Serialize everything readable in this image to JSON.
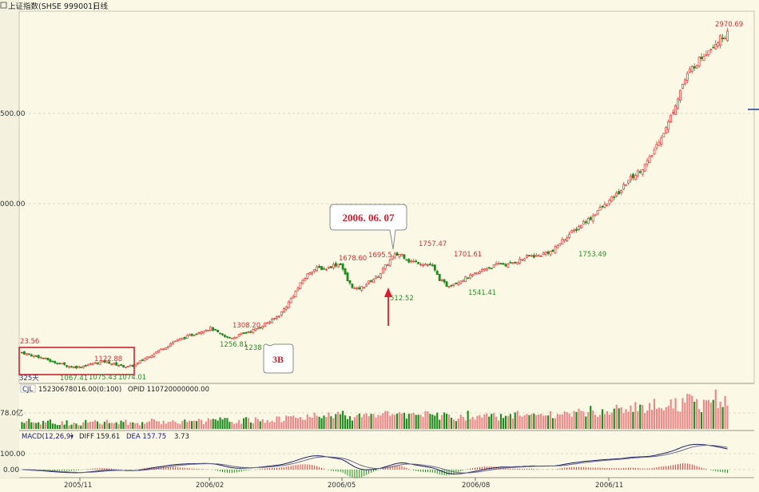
{
  "header": {
    "title": "上证指数(SHSE 999001)",
    "period": "日线"
  },
  "colors": {
    "background": "#fbf9e6",
    "up": "#e0383a",
    "down": "#1c8c1c",
    "grid": "#d8d6c6",
    "annotation_red": "#cc2030",
    "label_red": "#d03030",
    "label_green": "#2a8a2a",
    "macd_diff": "#1a1a66",
    "macd_dea": "#6a6a8a",
    "box": "#cc2233"
  },
  "price_axis": {
    "labels": [
      "500.00",
      "000.00"
    ]
  },
  "x_axis": {
    "labels": [
      "2005/11",
      "2006/02",
      "2006/05",
      "2006/08",
      "2006/11"
    ]
  },
  "price_annotations": [
    {
      "text": "23.56",
      "color": "red"
    },
    {
      "text": "1122.88",
      "color": "red"
    },
    {
      "text": "1067.41",
      "color": "green"
    },
    {
      "text": "1075.43",
      "color": "green"
    },
    {
      "text": "1074.01",
      "color": "green"
    },
    {
      "text": "325天",
      "color": "navy"
    },
    {
      "text": "1308.20",
      "color": "red"
    },
    {
      "text": "1256.81",
      "color": "green"
    },
    {
      "text": "1238",
      "color": "green"
    },
    {
      "text": "1678.60",
      "color": "red"
    },
    {
      "text": "1695.5",
      "color": "red"
    },
    {
      "text": "512.52",
      "color": "green"
    },
    {
      "text": "1757.47",
      "color": "red"
    },
    {
      "text": "1701.61",
      "color": "red"
    },
    {
      "text": "1541.41",
      "color": "green"
    },
    {
      "text": "1753.49",
      "color": "green"
    },
    {
      "text": "2970.69",
      "color": "red"
    }
  ],
  "callouts": {
    "date": "2006. 06. 07",
    "marker": "3B"
  },
  "volume_panel": {
    "indicator": "CJL",
    "value_text": "15230678016.00(0:100)",
    "opid_text": "OPID 110720000000.00",
    "axis_label": "78.0亿"
  },
  "macd_panel": {
    "indicator": "MACD(12,26,9)",
    "diff_text": "DIFF 159.61",
    "dea_text": "DEA 157.75",
    "macd_value": "3.73",
    "axis_labels": [
      "100.00",
      "0.00"
    ]
  },
  "chart_data": {
    "type": "candlestick",
    "title": "上证指数(SHSE 999001)",
    "period": "日线",
    "x_tick_labels": [
      "2005/11",
      "2006/02",
      "2006/05",
      "2006/08",
      "2006/11"
    ],
    "y_tick_labels": [
      "500.00",
      "000.00"
    ],
    "key_price_points": [
      {
        "label": "23.56",
        "note": "start high"
      },
      {
        "label": "1122.88",
        "type": "high"
      },
      {
        "label": "1067.41",
        "type": "low"
      },
      {
        "label": "1075.43",
        "type": "low"
      },
      {
        "label": "1074.01",
        "type": "low"
      },
      {
        "label": "1308.20",
        "type": "high"
      },
      {
        "label": "1256.81",
        "type": "low"
      },
      {
        "label": "1678.60",
        "type": "high"
      },
      {
        "label": "1695.5",
        "type": "high"
      },
      {
        "label": "512.52",
        "type": "low"
      },
      {
        "label": "1757.47",
        "type": "high"
      },
      {
        "label": "1701.61",
        "type": "high"
      },
      {
        "label": "1541.41",
        "type": "low"
      },
      {
        "label": "1753.49",
        "type": "low"
      },
      {
        "label": "2970.69",
        "type": "high"
      }
    ],
    "close_path_estimate": [
      1165,
      1150,
      1142,
      1128,
      1110,
      1100,
      1085,
      1078,
      1084,
      1095,
      1105,
      1112,
      1098,
      1088,
      1080,
      1092,
      1125,
      1150,
      1175,
      1200,
      1230,
      1245,
      1262,
      1280,
      1298,
      1308,
      1275,
      1252,
      1255,
      1275,
      1290,
      1305,
      1335,
      1355,
      1390,
      1450,
      1520,
      1590,
      1645,
      1665,
      1660,
      1680,
      1690,
      1580,
      1535,
      1555,
      1590,
      1620,
      1680,
      1735,
      1745,
      1705,
      1700,
      1690,
      1680,
      1600,
      1560,
      1575,
      1595,
      1612,
      1632,
      1662,
      1672,
      1692,
      1682,
      1702,
      1716,
      1736,
      1732,
      1752,
      1760,
      1810,
      1850,
      1880,
      1920,
      1945,
      1990,
      2020,
      2060,
      2100,
      2160,
      2190,
      2230,
      2290,
      2380,
      2450,
      2560,
      2680,
      2760,
      2810,
      2860,
      2900,
      2940,
      2970
    ]
  }
}
